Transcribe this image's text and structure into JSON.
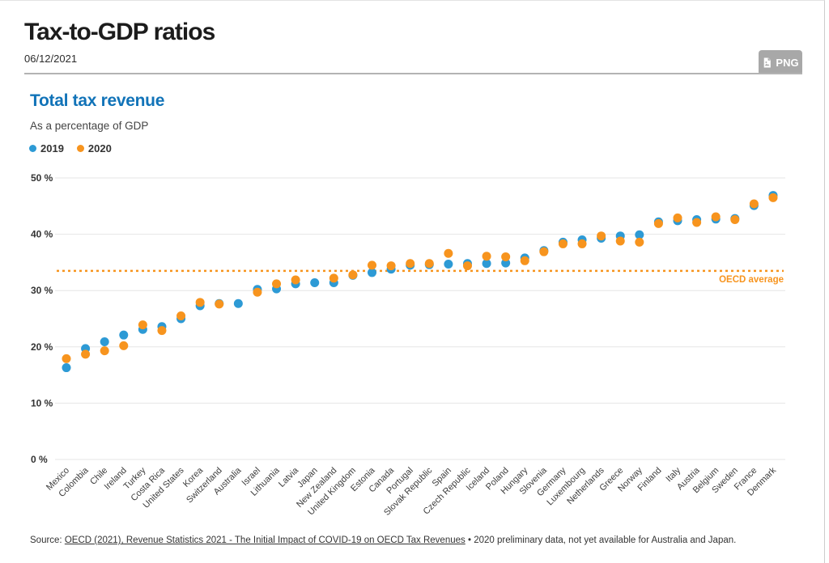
{
  "header": {
    "title": "Tax-to-GDP ratios",
    "date": "06/12/2021",
    "png_button_label": "PNG"
  },
  "chart": {
    "title": "Total tax revenue",
    "subtitle": "As a percentage of GDP"
  },
  "footer": {
    "source_prefix": "Source: ",
    "source_link": "OECD (2021), Revenue Statistics 2021 - The Initial Impact of COVID-19 on OECD Tax Revenues",
    "separator": " • ",
    "source_note": "2020 preliminary data, not yet available for Australia and Japan."
  },
  "chart_data": {
    "type": "scatter",
    "title": "Total tax revenue",
    "subtitle": "As a percentage of GDP",
    "ylabel": "% of GDP",
    "ylim": [
      0,
      50
    ],
    "yticks": [
      0,
      10,
      20,
      30,
      40,
      50
    ],
    "ytick_suffix": " %",
    "grid": true,
    "legend_position": "top-left",
    "categories": [
      "Mexico",
      "Colombia",
      "Chile",
      "Ireland",
      "Turkey",
      "Costa Rica",
      "United States",
      "Korea",
      "Switzerland",
      "Australia",
      "Israel",
      "Lithuania",
      "Latvia",
      "Japan",
      "New Zealand",
      "United Kingdom",
      "Estonia",
      "Canada",
      "Portugal",
      "Slovak Republic",
      "Spain",
      "Czech Republic",
      "Iceland",
      "Poland",
      "Hungary",
      "Slovenia",
      "Germany",
      "Luxembourg",
      "Netherlands",
      "Greece",
      "Norway",
      "Finland",
      "Italy",
      "Austria",
      "Belgium",
      "Sweden",
      "France",
      "Denmark"
    ],
    "series": [
      {
        "name": "2019",
        "color": "#2d9ad5",
        "values": [
          16.3,
          19.7,
          20.9,
          22.1,
          23.1,
          23.6,
          25.0,
          27.3,
          27.7,
          27.7,
          30.2,
          30.3,
          31.2,
          31.4,
          31.4,
          32.7,
          33.2,
          33.8,
          34.5,
          34.6,
          34.7,
          34.8,
          34.8,
          34.9,
          35.8,
          37.1,
          38.6,
          39.0,
          39.3,
          39.7,
          39.9,
          42.2,
          42.4,
          42.6,
          42.7,
          42.8,
          45.1,
          46.9
        ]
      },
      {
        "name": "2020",
        "color": "#f7941e",
        "values": [
          17.9,
          18.7,
          19.3,
          20.2,
          23.9,
          22.9,
          25.5,
          27.9,
          27.6,
          null,
          29.7,
          31.2,
          31.9,
          null,
          32.2,
          32.8,
          34.5,
          34.4,
          34.8,
          34.8,
          36.6,
          34.4,
          36.1,
          36.0,
          35.3,
          36.9,
          38.3,
          38.3,
          39.7,
          38.8,
          38.6,
          41.9,
          42.9,
          42.1,
          43.1,
          42.6,
          45.4,
          46.5
        ]
      }
    ],
    "reference_line": {
      "label": "OECD average",
      "value": 33.5,
      "color": "#f7941e"
    },
    "notes": "2020 preliminary data, not yet available for Australia and Japan."
  }
}
